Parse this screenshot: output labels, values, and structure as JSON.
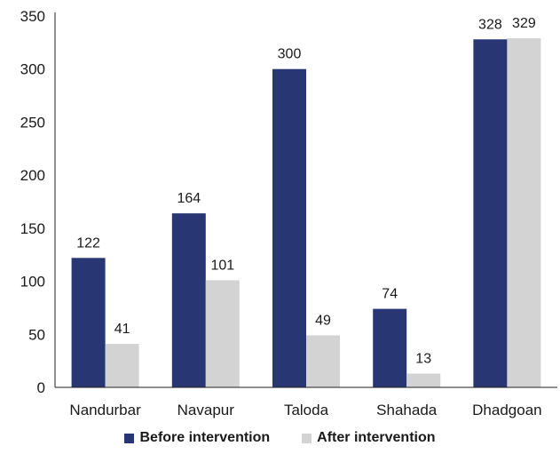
{
  "chart_data": {
    "type": "bar",
    "categories": [
      "Nandurbar",
      "Navapur",
      "Taloda",
      "Shahada",
      "Dhadgoan"
    ],
    "series": [
      {
        "name": "Before intervention",
        "values": [
          122,
          164,
          300,
          74,
          328
        ],
        "color": "#283673"
      },
      {
        "name": "After intervention",
        "values": [
          41,
          101,
          49,
          13,
          329
        ],
        "color": "#d3d3d3"
      }
    ],
    "data_labels": [
      [
        "122",
        "164",
        "300",
        "74",
        "328"
      ],
      [
        "41",
        "101",
        "49",
        "13",
        "329"
      ]
    ],
    "yticks": [
      0,
      50,
      100,
      150,
      200,
      250,
      300,
      350
    ],
    "ylim": [
      0,
      350
    ],
    "title": "",
    "xlabel": "",
    "ylabel": "",
    "legend_position": "bottom-center",
    "grid": false
  }
}
